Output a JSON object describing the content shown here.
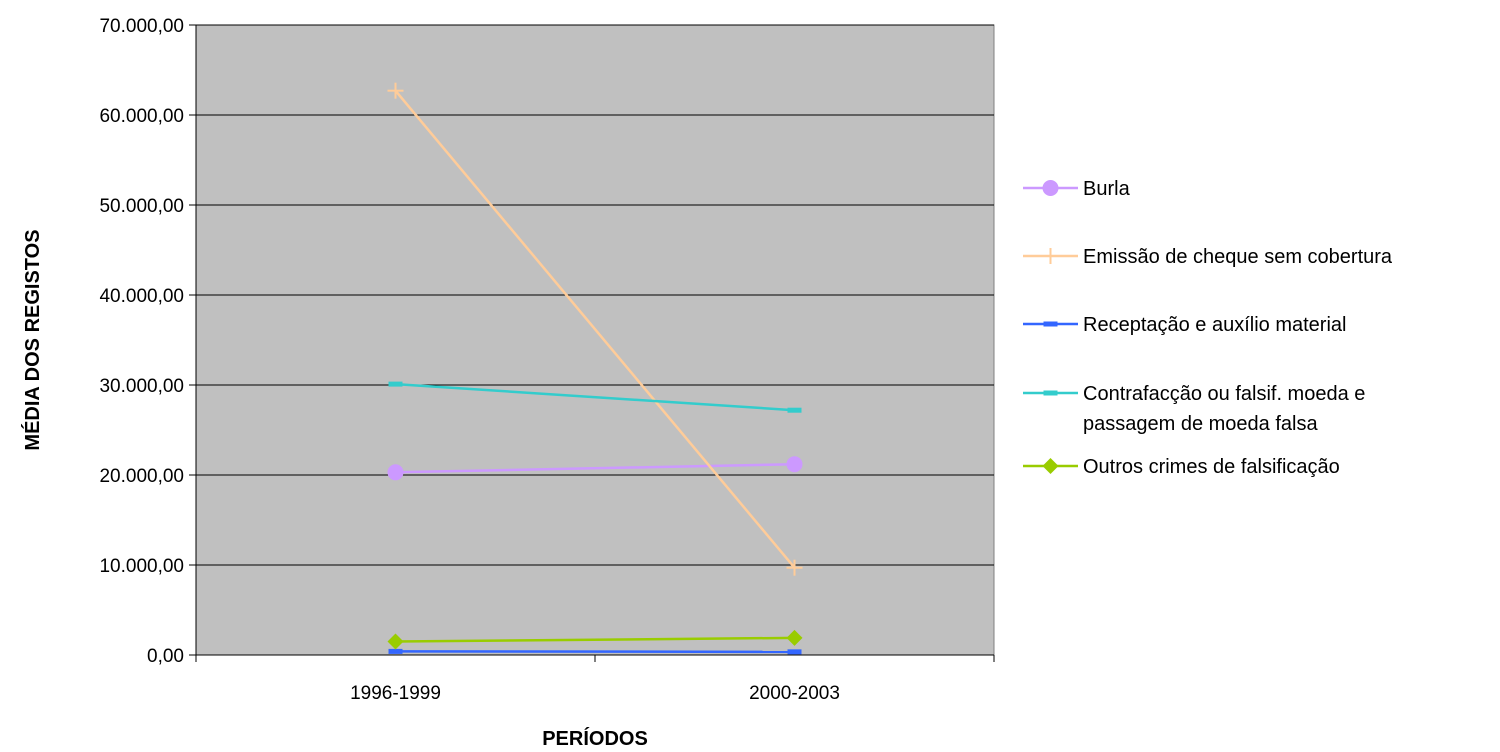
{
  "chart_data": {
    "type": "line",
    "title": "",
    "xlabel": "PERÍODOS",
    "ylabel": "MÉDIA DOS REGISTOS",
    "categories": [
      "1996-1999",
      "2000-2003"
    ],
    "ylim": [
      0,
      70000
    ],
    "ytick_values": [
      0,
      10000,
      20000,
      30000,
      40000,
      50000,
      60000,
      70000
    ],
    "ytick_labels": [
      "0,00",
      "10.000,00",
      "20.000,00",
      "30.000,00",
      "40.000,00",
      "50.000,00",
      "60.000,00",
      "70.000,00"
    ],
    "grid": true,
    "legend_position": "right",
    "plot_background": "#c0c0c0",
    "series": [
      {
        "name": "Burla",
        "values": [
          20300,
          21200
        ],
        "color": "#cc99ff",
        "marker": "circle"
      },
      {
        "name": "Emissão de cheque sem cobertura",
        "values": [
          62700,
          9700
        ],
        "color": "#ffcc99",
        "marker": "plus"
      },
      {
        "name": "Receptação e auxílio material",
        "values": [
          400,
          350
        ],
        "color": "#3366ff",
        "marker": "dash"
      },
      {
        "name": "Contrafacção ou falsif. moeda e passagem de moeda falsa",
        "legend_lines": [
          "Contrafacção ou falsif. moeda e",
          "passagem de moeda falsa"
        ],
        "values": [
          30100,
          27200
        ],
        "color": "#33cccc",
        "marker": "dash"
      },
      {
        "name": "Outros crimes de falsificação",
        "values": [
          1500,
          1900
        ],
        "color": "#99cc00",
        "marker": "diamond"
      }
    ]
  }
}
